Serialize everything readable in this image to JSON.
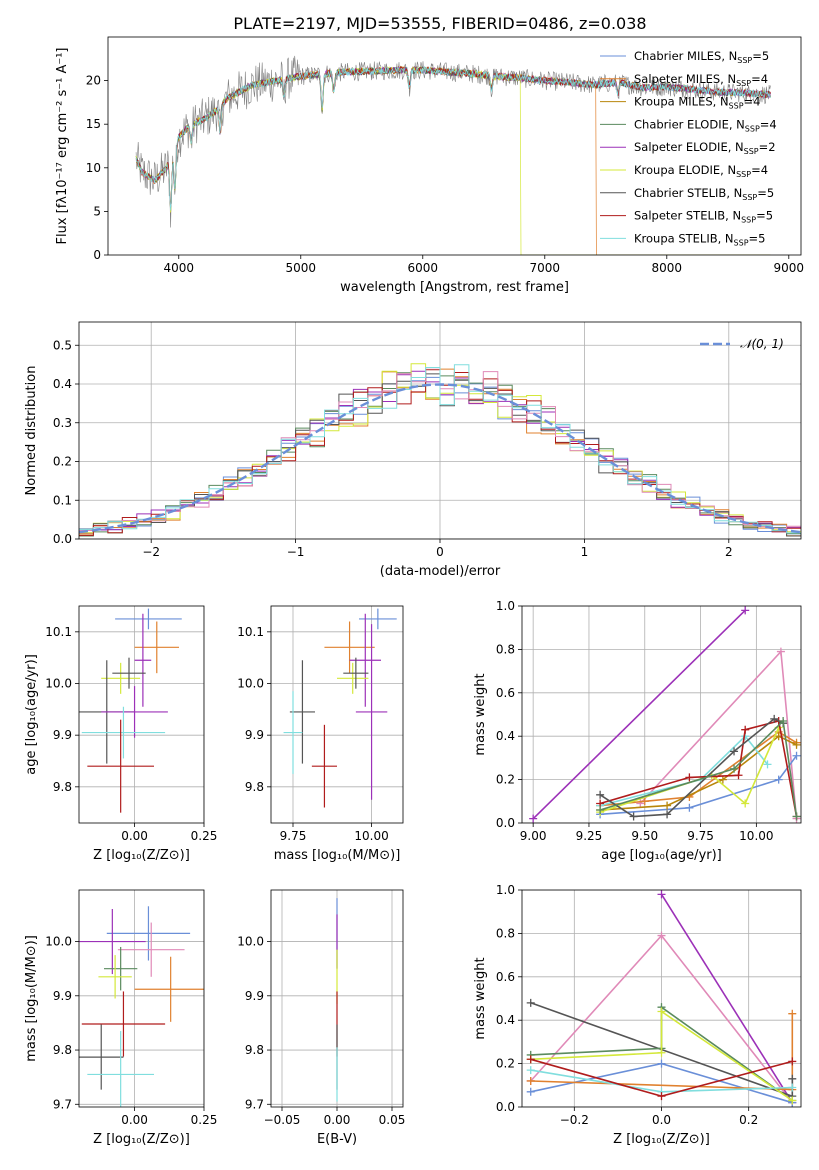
{
  "title": "PLATE=2197, MJD=53555, FIBERID=0486, z=0.038",
  "colors": {
    "Chabrier MILES": "#6a8fd8",
    "Salpeter MILES": "#e0812f",
    "Kroupa MILES": "#b8860b",
    "Chabrier ELODIE": "#5a8a5e",
    "Salpeter ELODIE": "#9c31b8",
    "Kroupa ELODIE": "#d4e83a",
    "Chabrier STELIB": "#555555",
    "Salpeter STELIB": "#b01c1c",
    "Kroupa STELIB": "#80dede",
    "pink": "#e08ab8",
    "normal": "#6a8fd8"
  },
  "chart_data": [
    {
      "type": "line",
      "id": "spectrum",
      "xlabel": "wavelength [Angstrom, rest frame]",
      "ylabel": "Flux [fλ10⁻¹⁷ erg cm⁻² s⁻¹ A⁻¹]",
      "xlim": [
        3420,
        9100
      ],
      "ylim": [
        0,
        25
      ],
      "xticks": [
        4000,
        5000,
        6000,
        7000,
        8000,
        9000
      ],
      "yticks": [
        0,
        5,
        10,
        15,
        20
      ],
      "data_range": [
        3650,
        8850
      ],
      "legend_position": "upper-right",
      "continuum": {
        "x": [
          3650,
          3700,
          3800,
          3900,
          4000,
          4100,
          4200,
          4300,
          4400,
          4600,
          4800,
          5000,
          5200,
          5400,
          5600,
          5800,
          6000,
          6200,
          6400,
          6600,
          6800,
          7000,
          7200,
          7400,
          7600,
          7800,
          8000,
          8200,
          8400,
          8600,
          8850
        ],
        "y": [
          11,
          9.5,
          8.5,
          10,
          13.5,
          15,
          15.5,
          16.5,
          18,
          19.5,
          20,
          20.5,
          20.8,
          21,
          21.1,
          21.2,
          21.2,
          21,
          20.8,
          20.5,
          20.3,
          20.0,
          19.8,
          19.5,
          19.8,
          19.2,
          19.3,
          19.0,
          18.7,
          18.6,
          18.4
        ]
      },
      "series": [
        {
          "name": "Chabrier MILES, N_SSP=5",
          "color_key": "Chabrier MILES"
        },
        {
          "name": "Salpeter MILES, N_SSP=4",
          "color_key": "Salpeter MILES",
          "cutoff": 7420
        },
        {
          "name": "Kroupa MILES, N_SSP=4",
          "color_key": "Kroupa MILES"
        },
        {
          "name": "Chabrier ELODIE, N_SSP=4",
          "color_key": "Chabrier ELODIE"
        },
        {
          "name": "Salpeter ELODIE, N_SSP=2",
          "color_key": "Salpeter ELODIE"
        },
        {
          "name": "Kroupa ELODIE, N_SSP=4",
          "color_key": "Kroupa ELODIE",
          "cutoff": 6800
        },
        {
          "name": "Chabrier STELIB, N_SSP=5",
          "color_key": "Chabrier STELIB"
        },
        {
          "name": "Salpeter STELIB, N_SSP=5",
          "color_key": "Salpeter STELIB"
        },
        {
          "name": "Kroupa STELIB, N_SSP=5",
          "color_key": "Kroupa STELIB"
        }
      ]
    },
    {
      "type": "histogram",
      "id": "residuals",
      "xlabel": "(data-model)/error",
      "ylabel": "Normed distribution",
      "xlim": [
        -2.5,
        2.5
      ],
      "ylim": [
        0,
        0.56
      ],
      "xticks": [
        -2,
        -1,
        0,
        1,
        2
      ],
      "yticks": [
        0.0,
        0.1,
        0.2,
        0.3,
        0.4,
        0.5
      ],
      "grid": true,
      "legend": "𝒩(0, 1)",
      "legend_position": "upper-right",
      "bin_width": 0.1,
      "bin_start": -2.5,
      "series_color_keys": [
        "Chabrier MILES",
        "Salpeter MILES",
        "Chabrier ELODIE",
        "Salpeter ELODIE",
        "Kroupa ELODIE",
        "Chabrier STELIB",
        "Salpeter STELIB",
        "pink",
        "Kroupa STELIB"
      ]
    },
    {
      "type": "errorbar",
      "id": "age-vs-Z",
      "xlabel": "Z [log₁₀(Z/Z⊙)]",
      "ylabel": "age  [log₁₀(age/yr)]",
      "xlim": [
        -0.2,
        0.25
      ],
      "ylim": [
        9.73,
        10.15
      ],
      "xticks": [
        -0.25,
        0.0,
        0.25
      ],
      "xticklabels": [
        "−0.25",
        "0.00",
        "0.25"
      ],
      "yticks": [
        9.8,
        9.9,
        10.0,
        10.1
      ],
      "grid": true,
      "points": [
        {
          "c": "Chabrier MILES",
          "x": 0.05,
          "xe": 0.12,
          "y": 10.125,
          "ye": 0.02
        },
        {
          "c": "Salpeter MILES",
          "x": 0.08,
          "xe": 0.08,
          "y": 10.07,
          "ye": 0.05
        },
        {
          "c": "Salpeter ELODIE",
          "x": 0.03,
          "xe": 0.03,
          "y": 10.045,
          "ye": 0.09
        },
        {
          "c": "Kroupa ELODIE",
          "x": -0.05,
          "xe": 0.07,
          "y": 10.01,
          "ye": 0.03
        },
        {
          "c": "Chabrier STELIB",
          "x": -0.02,
          "xe": 0.06,
          "y": 10.02,
          "ye": 0.03
        },
        {
          "c": "Chabrier STELIB",
          "x": -0.1,
          "xe": 0.1,
          "y": 9.945,
          "ye": 0.1
        },
        {
          "c": "Salpeter ELODIE",
          "x": 0.0,
          "xe": 0.12,
          "y": 9.945,
          "ye": 0.05
        },
        {
          "c": "Kroupa STELIB",
          "x": -0.04,
          "xe": 0.15,
          "y": 9.905,
          "ye": 0.05
        },
        {
          "c": "Salpeter STELIB",
          "x": -0.05,
          "xe": 0.12,
          "y": 9.84,
          "ye": 0.09
        }
      ]
    },
    {
      "type": "errorbar",
      "id": "age-vs-mass",
      "xlabel": "mass [log₁₀(M/M⊙)]",
      "xlim": [
        9.68,
        10.1
      ],
      "ylim": [
        9.73,
        10.15
      ],
      "xticks": [
        9.75,
        10.0
      ],
      "xticklabels": [
        "9.75",
        "10.00"
      ],
      "yticks": [
        9.8,
        9.9,
        10.0,
        10.1
      ],
      "grid": true,
      "points": [
        {
          "c": "Chabrier MILES",
          "x": 10.02,
          "xe": 0.06,
          "y": 10.125,
          "ye": 0.02
        },
        {
          "c": "Salpeter MILES",
          "x": 9.93,
          "xe": 0.08,
          "y": 10.07,
          "ye": 0.05
        },
        {
          "c": "Salpeter ELODIE",
          "x": 9.98,
          "xe": 0.05,
          "y": 10.045,
          "ye": 0.09
        },
        {
          "c": "Kroupa ELODIE",
          "x": 9.94,
          "xe": 0.05,
          "y": 10.01,
          "ye": 0.03
        },
        {
          "c": "Chabrier STELIB",
          "x": 9.95,
          "xe": 0.04,
          "y": 10.02,
          "ye": 0.03
        },
        {
          "c": "Chabrier STELIB",
          "x": 9.78,
          "xe": 0.04,
          "y": 9.945,
          "ye": 0.1
        },
        {
          "c": "Salpeter ELODIE",
          "x": 10.0,
          "xe": 0.05,
          "y": 9.945,
          "ye": 0.17
        },
        {
          "c": "Kroupa STELIB",
          "x": 9.75,
          "xe": 0.03,
          "y": 9.905,
          "ye": 0.08
        },
        {
          "c": "Salpeter STELIB",
          "x": 9.85,
          "xe": 0.04,
          "y": 9.84,
          "ye": 0.08
        }
      ]
    },
    {
      "type": "line",
      "id": "massweight-vs-age",
      "xlabel": "age  [log₁₀(age/yr)]",
      "ylabel": "mass weight",
      "xlim": [
        8.95,
        10.2
      ],
      "ylim": [
        0,
        1
      ],
      "xticks": [
        9.0,
        9.25,
        9.5,
        9.75,
        10.0
      ],
      "xticklabels": [
        "9.00",
        "9.25",
        "9.50",
        "9.75",
        "10.00"
      ],
      "yticks": [
        0.0,
        0.2,
        0.4,
        0.6,
        0.8,
        1.0
      ],
      "grid": true,
      "series": [
        {
          "c": "Salpeter ELODIE",
          "x": [
            9.0,
            9.95
          ],
          "y": [
            0.02,
            0.98
          ]
        },
        {
          "c": "pink",
          "x": [
            9.48,
            10.11,
            10.18
          ],
          "y": [
            0.09,
            0.79,
            0.02
          ]
        },
        {
          "c": "Chabrier MILES",
          "x": [
            9.3,
            9.7,
            10.1,
            10.18
          ],
          "y": [
            0.04,
            0.07,
            0.2,
            0.31
          ]
        },
        {
          "c": "Salpeter MILES",
          "x": [
            9.3,
            9.5,
            9.7,
            10.1,
            10.18
          ],
          "y": [
            0.08,
            0.1,
            0.12,
            0.42,
            0.37
          ]
        },
        {
          "c": "Kroupa MILES",
          "x": [
            9.3,
            9.6,
            9.85,
            10.1,
            10.18
          ],
          "y": [
            0.06,
            0.08,
            0.2,
            0.4,
            0.36
          ]
        },
        {
          "c": "Kroupa STELIB",
          "x": [
            9.3,
            9.75,
            9.95,
            10.05
          ],
          "y": [
            0.08,
            0.2,
            0.4,
            0.27
          ]
        },
        {
          "c": "Kroupa ELODIE",
          "x": [
            9.3,
            9.8,
            9.95,
            10.1
          ],
          "y": [
            0.05,
            0.22,
            0.09,
            0.44
          ]
        },
        {
          "c": "Salpeter STELIB",
          "x": [
            9.3,
            9.7,
            9.92,
            9.95,
            10.1,
            10.18
          ],
          "y": [
            0.09,
            0.21,
            0.22,
            0.43,
            0.47,
            0.03
          ]
        },
        {
          "c": "Chabrier STELIB",
          "x": [
            9.3,
            9.45,
            9.6,
            9.9,
            10.08,
            10.12
          ],
          "y": [
            0.13,
            0.03,
            0.04,
            0.33,
            0.48,
            0.46
          ]
        },
        {
          "c": "Chabrier ELODIE",
          "x": [
            9.3,
            9.9,
            10.12,
            10.18
          ],
          "y": [
            0.06,
            0.25,
            0.47,
            0.03
          ]
        }
      ]
    },
    {
      "type": "errorbar",
      "id": "mass-vs-Z",
      "xlabel": "Z [log₁₀(Z/Z⊙)]",
      "ylabel": "mass [log₁₀(M/M⊙)]",
      "xlim": [
        -0.2,
        0.25
      ],
      "ylim": [
        9.695,
        10.095
      ],
      "xticks": [
        -0.25,
        0.0,
        0.25
      ],
      "xticklabels": [
        "−0.25",
        "0.00",
        "0.25"
      ],
      "yticks": [
        9.7,
        9.8,
        9.9,
        10.0
      ],
      "grid": true,
      "points": [
        {
          "c": "Chabrier MILES",
          "x": 0.05,
          "xe": 0.15,
          "y": 10.015,
          "ye": 0.05
        },
        {
          "c": "Salpeter ELODIE",
          "x": -0.08,
          "xe": 0.12,
          "y": 10.0,
          "ye": 0.06
        },
        {
          "c": "pink",
          "x": 0.06,
          "xe": 0.12,
          "y": 9.985,
          "ye": 0.05
        },
        {
          "c": "Chabrier ELODIE",
          "x": -0.05,
          "xe": 0.06,
          "y": 9.95,
          "ye": 0.04
        },
        {
          "c": "Kroupa ELODIE",
          "x": -0.07,
          "xe": 0.06,
          "y": 9.935,
          "ye": 0.04
        },
        {
          "c": "Salpeter MILES",
          "x": 0.13,
          "xe": 0.13,
          "y": 9.912,
          "ye": 0.06
        },
        {
          "c": "Salpeter STELIB",
          "x": -0.04,
          "xe": 0.15,
          "y": 9.848,
          "ye": 0.06
        },
        {
          "c": "Chabrier STELIB",
          "x": -0.12,
          "xe": 0.08,
          "y": 9.787,
          "ye": 0.06
        },
        {
          "c": "Kroupa STELIB",
          "x": -0.05,
          "xe": 0.12,
          "y": 9.755,
          "ye": 0.08
        }
      ]
    },
    {
      "type": "errorbar",
      "id": "mass-vs-ebv",
      "xlabel": "E(B-V)",
      "xlim": [
        -0.06,
        0.06
      ],
      "ylim": [
        9.695,
        10.095
      ],
      "xticks": [
        -0.05,
        0.0,
        0.05
      ],
      "xticklabels": [
        "−0.05",
        "0.00",
        "0.05"
      ],
      "yticks": [
        9.7,
        9.8,
        9.9,
        10.0
      ],
      "grid": true,
      "points": [
        {
          "c": "Chabrier MILES",
          "x": 0.0,
          "xe": 0,
          "y": 10.015,
          "ye": 0.065
        },
        {
          "c": "Salpeter ELODIE",
          "x": 0.0,
          "xe": 0,
          "y": 10.0,
          "ye": 0.05
        },
        {
          "c": "Kroupa ELODIE",
          "x": 0.0,
          "xe": 0,
          "y": 9.935,
          "ye": 0.05
        },
        {
          "c": "Salpeter STELIB",
          "x": 0.0,
          "xe": 0,
          "y": 9.848,
          "ye": 0.06
        },
        {
          "c": "Chabrier STELIB",
          "x": 0.0,
          "xe": 0,
          "y": 9.787,
          "ye": 0.06
        },
        {
          "c": "Kroupa STELIB",
          "x": 0.0,
          "xe": 0,
          "y": 9.755,
          "ye": 0.05
        }
      ]
    },
    {
      "type": "line",
      "id": "massweight-vs-Z",
      "xlabel": "Z [log₁₀(Z/Z⊙)]",
      "ylabel": "mass weight",
      "xlim": [
        -0.32,
        0.32
      ],
      "ylim": [
        0,
        1
      ],
      "xticks": [
        -0.2,
        0.0,
        0.2
      ],
      "xticklabels": [
        "−0.2",
        "0.0",
        "0.2"
      ],
      "yticks": [
        0.0,
        0.2,
        0.4,
        0.6,
        0.8,
        1.0
      ],
      "grid": true,
      "series": [
        {
          "c": "Salpeter ELODIE",
          "x": [
            0.0,
            0.3
          ],
          "y": [
            0.98,
            0.02
          ]
        },
        {
          "c": "pink",
          "x": [
            -0.3,
            0.0,
            0.3
          ],
          "y": [
            0.12,
            0.79,
            0.02
          ]
        },
        {
          "c": "Chabrier MILES",
          "x": [
            -0.3,
            0.0,
            0.3
          ],
          "y": [
            0.07,
            0.2,
            0.02
          ]
        },
        {
          "c": "Salpeter MILES",
          "x": [
            -0.3,
            0.3,
            0.3
          ],
          "y": [
            0.12,
            0.08,
            0.43
          ]
        },
        {
          "c": "Chabrier STELIB",
          "x": [
            -0.3,
            0.3,
            0.3
          ],
          "y": [
            0.48,
            0.05,
            0.13
          ]
        },
        {
          "c": "Chabrier ELODIE",
          "x": [
            -0.3,
            0.0,
            0.0,
            0.3
          ],
          "y": [
            0.24,
            0.27,
            0.46,
            0.03
          ]
        },
        {
          "c": "Kroupa ELODIE",
          "x": [
            -0.3,
            0.0,
            0.0,
            0.3
          ],
          "y": [
            0.22,
            0.25,
            0.44,
            0.03
          ]
        },
        {
          "c": "Kroupa STELIB",
          "x": [
            -0.3,
            0.0,
            0.3
          ],
          "y": [
            0.17,
            0.07,
            0.09
          ]
        },
        {
          "c": "Salpeter STELIB",
          "x": [
            -0.3,
            0.0,
            0.3
          ],
          "y": [
            0.22,
            0.05,
            0.21
          ]
        }
      ]
    }
  ]
}
